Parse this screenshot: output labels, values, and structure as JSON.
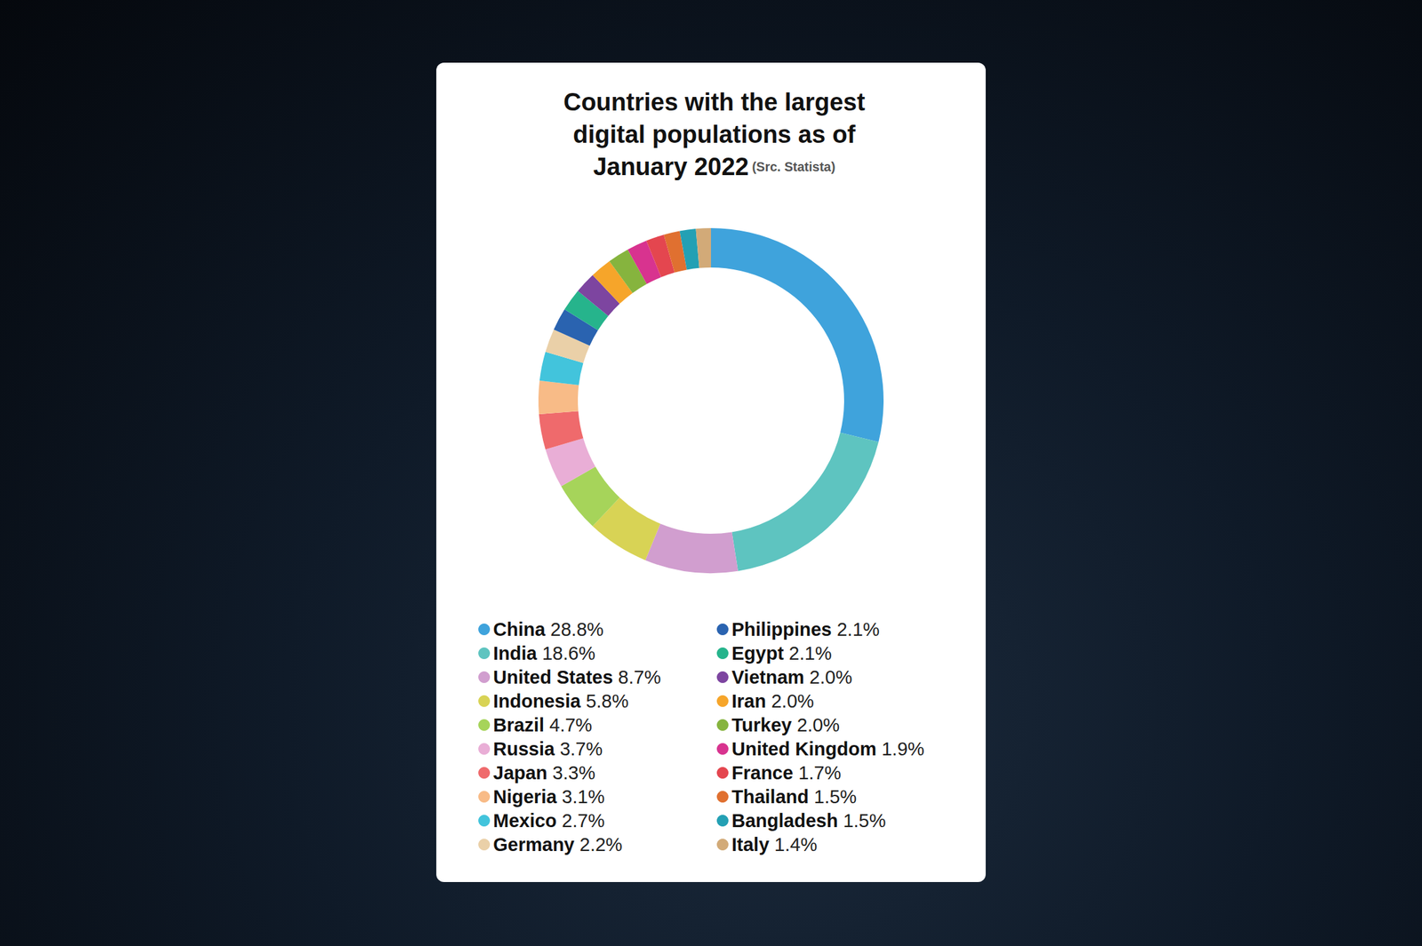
{
  "chart_data": {
    "type": "pie",
    "title": "Countries with the largest digital populations as of January 2022",
    "subtitle": "(Src. Statista)",
    "categories": [
      "China",
      "India",
      "United States",
      "Indonesia",
      "Brazil",
      "Russia",
      "Japan",
      "Nigeria",
      "Mexico",
      "Germany",
      "Philippines",
      "Egypt",
      "Vietnam",
      "Iran",
      "Turkey",
      "United Kingdom",
      "France",
      "Thailand",
      "Bangladesh",
      "Italy"
    ],
    "values": [
      28.8,
      18.6,
      8.7,
      5.8,
      4.7,
      3.7,
      3.3,
      3.1,
      2.7,
      2.2,
      2.1,
      2.1,
      2.0,
      2.0,
      2.0,
      1.9,
      1.7,
      1.5,
      1.5,
      1.4
    ],
    "value_labels": [
      "28.8%",
      "18.6%",
      "8.7%",
      "5.8%",
      "4.7%",
      "3.7%",
      "3.3%",
      "3.1%",
      "2.7%",
      "2.2%",
      "2.1%",
      "2.1%",
      "2.0%",
      "2.0%",
      "2.0%",
      "1.9%",
      "1.7%",
      "1.5%",
      "1.5%",
      "1.4%"
    ],
    "colors": [
      "#3fa3dc",
      "#5ec4c0",
      "#d19ecf",
      "#d8d355",
      "#a6d45a",
      "#e9aed6",
      "#ef6a6c",
      "#f8bb87",
      "#42c4dc",
      "#ead0a8",
      "#2a63b0",
      "#26b48c",
      "#7d45a0",
      "#f6a52a",
      "#86b43e",
      "#d8338f",
      "#e4464f",
      "#e07030",
      "#23a0b4",
      "#d2aa78"
    ],
    "legend": "bottom"
  }
}
